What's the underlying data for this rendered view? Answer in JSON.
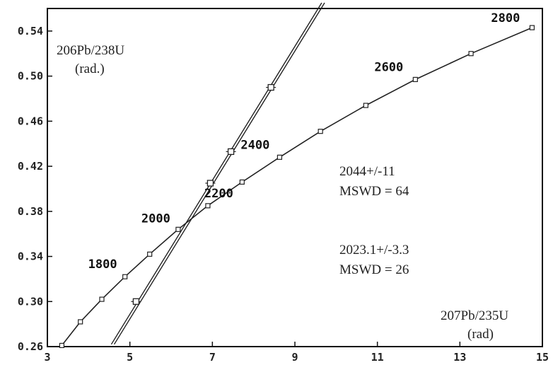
{
  "chart_data": {
    "type": "line",
    "xlabel": "207Pb/235U",
    "xlabel_sub": "(rad)",
    "ylabel": "206Pb/238U",
    "ylabel_sub": "(rad.)",
    "xlim": [
      3,
      15
    ],
    "ylim": [
      0.26,
      0.56
    ],
    "x_ticks": [
      3,
      5,
      7,
      9,
      11,
      13,
      15
    ],
    "y_ticks": [
      0.26,
      0.3,
      0.34,
      0.38,
      0.42,
      0.46,
      0.5,
      0.54
    ],
    "y_tick_labels": [
      "0.26",
      "0.30",
      "0.34",
      "0.38",
      "0.42",
      "0.46",
      "0.50",
      "0.54"
    ],
    "concordia": {
      "name": "Concordia",
      "x": [
        3.35,
        3.8,
        4.32,
        4.88,
        5.48,
        6.17,
        6.89,
        7.72,
        8.63,
        9.62,
        10.72,
        11.92,
        13.27,
        14.75
      ],
      "y": [
        0.261,
        0.282,
        0.302,
        0.322,
        0.342,
        0.364,
        0.385,
        0.406,
        0.428,
        0.451,
        0.474,
        0.497,
        0.52,
        0.543
      ]
    },
    "age_markers": [
      {
        "age": "1800",
        "x": 4.88,
        "y": 0.322
      },
      {
        "age": "2000",
        "x": 6.17,
        "y": 0.364
      },
      {
        "age": "2200",
        "x": 6.89,
        "y": 0.385
      },
      {
        "age": "2400",
        "x": 8.63,
        "y": 0.428
      },
      {
        "age": "2600",
        "x": 11.92,
        "y": 0.497
      },
      {
        "age": "2800",
        "x": 14.75,
        "y": 0.543
      }
    ],
    "discordia_lines": [
      {
        "x": [
          4.55,
          9.65
        ],
        "y": [
          0.262,
          0.565
        ]
      },
      {
        "x": [
          4.62,
          9.72
        ],
        "y": [
          0.262,
          0.565
        ]
      }
    ],
    "analyses": [
      {
        "x": 5.15,
        "y": 0.3
      },
      {
        "x": 6.95,
        "y": 0.405
      },
      {
        "x": 7.45,
        "y": 0.433
      },
      {
        "x": 8.42,
        "y": 0.49
      }
    ],
    "annotations": [
      {
        "line1": "2044+/-11",
        "line2": "MSWD = 64"
      },
      {
        "line1": "2023.1+/-3.3",
        "line2": "MSWD = 26"
      }
    ]
  }
}
